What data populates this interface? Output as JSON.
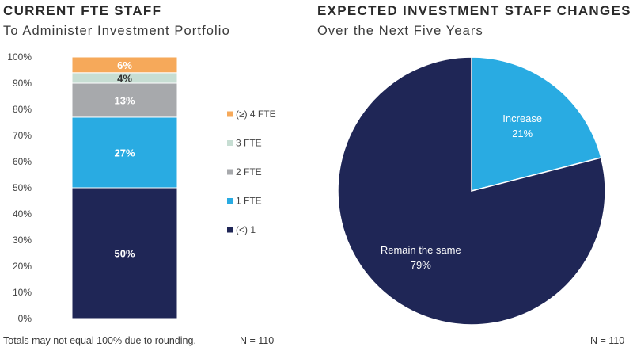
{
  "left_panel": {
    "title": "CURRENT FTE STAFF",
    "subtitle": "To Administer Investment Portfolio",
    "footnote": "Totals may not equal 100% due to rounding.",
    "n_label": "N = 110"
  },
  "right_panel": {
    "title": "EXPECTED INVESTMENT STAFF CHANGES",
    "subtitle": "Over the Next Five Years",
    "n_label": "N = 110"
  },
  "chart_data": [
    {
      "type": "bar",
      "stacked": true,
      "title": "CURRENT FTE STAFF",
      "subtitle": "To Administer Investment Portfolio",
      "ylim": [
        0,
        100
      ],
      "yticks": [
        "0%",
        "10%",
        "20%",
        "30%",
        "40%",
        "50%",
        "60%",
        "70%",
        "80%",
        "90%",
        "100%"
      ],
      "legend_position": "right",
      "series": [
        {
          "name": "(<) 1",
          "value": 50,
          "label": "50%",
          "color": "#1f2656",
          "label_color": "#ffffff"
        },
        {
          "name": "1 FTE",
          "value": 27,
          "label": "27%",
          "color": "#29abe2",
          "label_color": "#ffffff"
        },
        {
          "name": "2 FTE",
          "value": 13,
          "label": "13%",
          "color": "#a7a9ac",
          "label_color": "#ffffff"
        },
        {
          "name": "3 FTE",
          "value": 4,
          "label": "4%",
          "color": "#c7ded3",
          "label_color": "#333333"
        },
        {
          "name": "(≥) 4 FTE",
          "value": 6,
          "label": "6%",
          "color": "#f6a95a",
          "label_color": "#ffffff"
        }
      ]
    },
    {
      "type": "pie",
      "title": "EXPECTED INVESTMENT STAFF CHANGES",
      "subtitle": "Over the Next Five Years",
      "slices": [
        {
          "name": "Increase",
          "value": 21,
          "label": "21%",
          "color": "#29abe2"
        },
        {
          "name": "Remain the same",
          "value": 79,
          "label": "79%",
          "color": "#1f2656"
        }
      ]
    }
  ]
}
